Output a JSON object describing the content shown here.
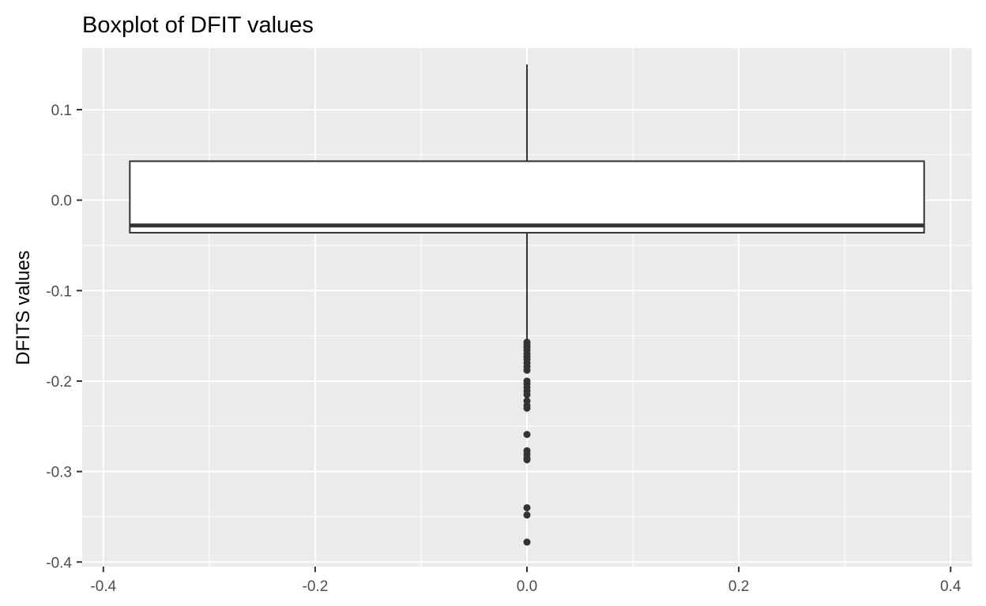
{
  "chart_data": {
    "type": "boxplot",
    "title": "Boxplot of DFIT values",
    "xlabel": "",
    "ylabel": "DFITS values",
    "xlim": [
      -0.42,
      0.42
    ],
    "ylim": [
      -0.405,
      0.168
    ],
    "x_ticks": [
      -0.4,
      -0.2,
      0.0,
      0.2,
      0.4
    ],
    "x_tick_labels": [
      "-0.4",
      "-0.2",
      "0.0",
      "0.2",
      "0.4"
    ],
    "y_ticks": [
      -0.4,
      -0.3,
      -0.2,
      -0.1,
      0.0,
      0.1
    ],
    "y_tick_labels": [
      "-0.4",
      "-0.3",
      "-0.2",
      "-0.1",
      "0.0",
      "0.1"
    ],
    "grid": true,
    "box": {
      "x_center": 0.0,
      "width": 0.75,
      "q1": -0.036,
      "median": -0.028,
      "q3": 0.043,
      "whisker_low": -0.156,
      "whisker_high": 0.15
    },
    "outliers": [
      -0.157,
      -0.16,
      -0.163,
      -0.166,
      -0.17,
      -0.173,
      -0.176,
      -0.18,
      -0.184,
      -0.188,
      -0.2,
      -0.203,
      -0.207,
      -0.211,
      -0.215,
      -0.222,
      -0.227,
      -0.23,
      -0.259,
      -0.277,
      -0.281,
      -0.285,
      -0.287,
      -0.34,
      -0.348,
      -0.378
    ],
    "colors": {
      "panel_background": "#ebebeb",
      "grid": "#ffffff",
      "box_fill": "#ffffff",
      "box_line": "#333333",
      "outlier": "#333333"
    }
  }
}
